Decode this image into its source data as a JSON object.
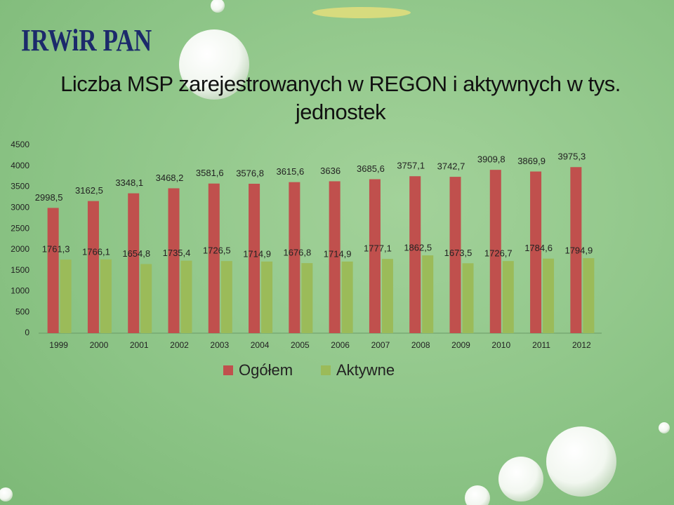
{
  "logo": "IRWiR PAN",
  "chart_data": {
    "type": "bar",
    "title": "Liczba MSP zarejestrowanych w REGON i aktywnych w tys. jednostek",
    "categories": [
      "1999",
      "2000",
      "2001",
      "2002",
      "2003",
      "2004",
      "2005",
      "2006",
      "2007",
      "2008",
      "2009",
      "2010",
      "2011",
      "2012"
    ],
    "series": [
      {
        "name": "Ogółem",
        "color": "#c0504d",
        "values": [
          2998.5,
          3162.5,
          3348.1,
          3468.2,
          3581.6,
          3576.8,
          3615.6,
          3636,
          3685.6,
          3757.1,
          3742.7,
          3909.8,
          3869.9,
          3975.3
        ],
        "value_labels": [
          "2998,5",
          "3162,5",
          "3348,1",
          "3468,2",
          "3581,6",
          "3576,8",
          "3615,6",
          "3636",
          "3685,6",
          "3757,1",
          "3742,7",
          "3909,8",
          "3869,9",
          "3975,3"
        ]
      },
      {
        "name": "Aktywne",
        "color": "#9bbb59",
        "values": [
          1761.3,
          1766.1,
          1654.8,
          1735.4,
          1726.5,
          1714.9,
          1676.8,
          1714.9,
          1777.1,
          1862.5,
          1673.5,
          1726.7,
          1784.6,
          1794.9
        ],
        "value_labels": [
          "1761,3",
          "1766,1",
          "1654,8",
          "1735,4",
          "1726,5",
          "1714,9",
          "1676,8",
          "1714,9",
          "1777,1",
          "1862,5",
          "1673,5",
          "1726,7",
          "1784,6",
          "1794,9"
        ]
      }
    ],
    "ylim": [
      0,
      4500
    ],
    "yticks": [
      0,
      500,
      1000,
      1500,
      2000,
      2500,
      3000,
      3500,
      4000,
      4500
    ],
    "grid": false
  }
}
